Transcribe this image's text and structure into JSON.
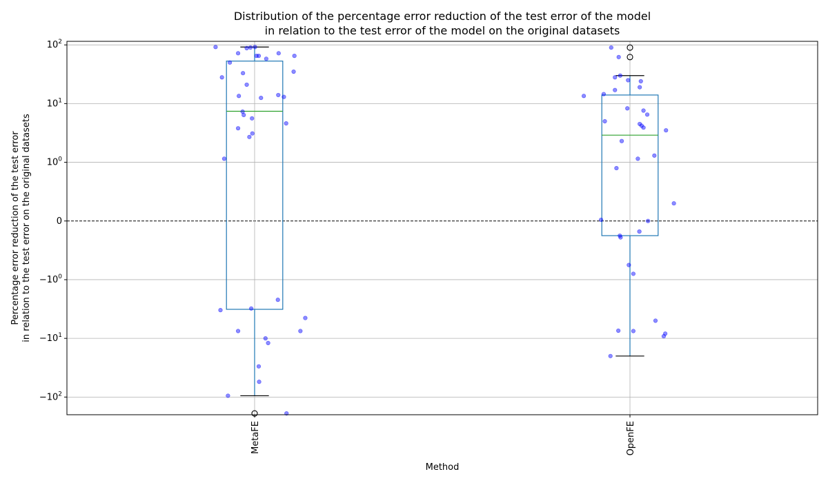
{
  "chart_data": {
    "type": "box",
    "title_line1": "Distribution of the percentage error reduction of the test error of the model",
    "title_line2": "in relation to the test error of the model on the original datasets",
    "xlabel": "Method",
    "ylabel_line1": "Percentage error reduction of the test error",
    "ylabel_line2": "in relation to the test error on the original datasets",
    "y_scale": "symlog",
    "y_linthresh": 1,
    "ylim": [
      -200,
      115
    ],
    "grid": true,
    "reference_line": 0,
    "colors": {
      "box": "#1f77b4",
      "median": "#2ca02c",
      "whisker_cap": "#000000",
      "points": "#0000ff",
      "grid": "#b0b0b0",
      "reference_line": "#000000"
    },
    "y_ticks": [
      {
        "value": 100,
        "base": "10",
        "exp": "2",
        "sign": ""
      },
      {
        "value": 10,
        "base": "10",
        "exp": "1",
        "sign": ""
      },
      {
        "value": 1,
        "base": "10",
        "exp": "0",
        "sign": ""
      },
      {
        "value": 0,
        "base": "0",
        "exp": "",
        "sign": ""
      },
      {
        "value": -1,
        "base": "10",
        "exp": "0",
        "sign": "−"
      },
      {
        "value": -10,
        "base": "10",
        "exp": "1",
        "sign": "−"
      },
      {
        "value": -100,
        "base": "10",
        "exp": "2",
        "sign": "−"
      }
    ],
    "categories": [
      "MetaFE",
      "OpenFE"
    ],
    "boxes": [
      {
        "name": "MetaFE",
        "whisker_low": -95,
        "q1": -3.2,
        "median": 7.4,
        "q3": 53,
        "whisker_high": 92,
        "fliers": [
          -190
        ],
        "points": [
          {
            "jitter": -0.104,
            "y": 92
          },
          {
            "jitter": -0.021,
            "y": 88
          },
          {
            "jitter": -0.011,
            "y": 90
          },
          {
            "jitter": 0.001,
            "y": 92
          },
          {
            "jitter": -0.044,
            "y": 72
          },
          {
            "jitter": 0.005,
            "y": 65
          },
          {
            "jitter": 0.011,
            "y": 65
          },
          {
            "jitter": 0.064,
            "y": 72
          },
          {
            "jitter": 0.106,
            "y": 65
          },
          {
            "jitter": 0.031,
            "y": 58
          },
          {
            "jitter": -0.066,
            "y": 50
          },
          {
            "jitter": -0.087,
            "y": 28
          },
          {
            "jitter": -0.031,
            "y": 33
          },
          {
            "jitter": 0.104,
            "y": 35
          },
          {
            "jitter": -0.021,
            "y": 21
          },
          {
            "jitter": -0.042,
            "y": 13.5
          },
          {
            "jitter": 0.017,
            "y": 12.5
          },
          {
            "jitter": 0.063,
            "y": 14
          },
          {
            "jitter": 0.078,
            "y": 13
          },
          {
            "jitter": -0.032,
            "y": 7.3
          },
          {
            "jitter": -0.029,
            "y": 6.4
          },
          {
            "jitter": -0.007,
            "y": 5.6
          },
          {
            "jitter": 0.084,
            "y": 4.6
          },
          {
            "jitter": -0.044,
            "y": 3.8
          },
          {
            "jitter": -0.006,
            "y": 3.1
          },
          {
            "jitter": -0.014,
            "y": 2.7
          },
          {
            "jitter": -0.081,
            "y": 1.15
          },
          {
            "jitter": 0.062,
            "y": -2.2
          },
          {
            "jitter": -0.009,
            "y": -3.1
          },
          {
            "jitter": -0.091,
            "y": -3.3
          },
          {
            "jitter": 0.135,
            "y": -4.5
          },
          {
            "jitter": -0.044,
            "y": -7.5
          },
          {
            "jitter": 0.122,
            "y": -7.5
          },
          {
            "jitter": 0.029,
            "y": -10
          },
          {
            "jitter": 0.036,
            "y": -12
          },
          {
            "jitter": 0.011,
            "y": -30
          },
          {
            "jitter": 0.012,
            "y": -55
          },
          {
            "jitter": -0.071,
            "y": -95
          },
          {
            "jitter": 0.085,
            "y": -190
          }
        ]
      },
      {
        "name": "OpenFE",
        "whisker_low": -20,
        "q1": -0.25,
        "median": 2.9,
        "q3": 14,
        "whisker_high": 30,
        "fliers": [
          90,
          62
        ],
        "points": [
          {
            "jitter": -0.05,
            "y": 90
          },
          {
            "jitter": -0.03,
            "y": 62
          },
          {
            "jitter": -0.04,
            "y": 28
          },
          {
            "jitter": -0.026,
            "y": 30
          },
          {
            "jitter": -0.005,
            "y": 25
          },
          {
            "jitter": 0.029,
            "y": 24
          },
          {
            "jitter": -0.04,
            "y": 17
          },
          {
            "jitter": 0.026,
            "y": 19
          },
          {
            "jitter": -0.07,
            "y": 14.5
          },
          {
            "jitter": -0.123,
            "y": 13.5
          },
          {
            "jitter": -0.007,
            "y": 8.3
          },
          {
            "jitter": 0.036,
            "y": 7.6
          },
          {
            "jitter": 0.046,
            "y": 6.5
          },
          {
            "jitter": -0.067,
            "y": 5
          },
          {
            "jitter": 0.026,
            "y": 4.5
          },
          {
            "jitter": 0.031,
            "y": 4.2
          },
          {
            "jitter": 0.036,
            "y": 3.9
          },
          {
            "jitter": 0.096,
            "y": 3.5
          },
          {
            "jitter": -0.022,
            "y": 2.3
          },
          {
            "jitter": 0.065,
            "y": 1.3
          },
          {
            "jitter": 0.021,
            "y": 1.15
          },
          {
            "jitter": -0.036,
            "y": 0.9
          },
          {
            "jitter": 0.117,
            "y": 0.3
          },
          {
            "jitter": -0.077,
            "y": 0.02
          },
          {
            "jitter": 0.048,
            "y": 0.0
          },
          {
            "jitter": 0.025,
            "y": -0.18
          },
          {
            "jitter": -0.027,
            "y": -0.25
          },
          {
            "jitter": -0.025,
            "y": -0.28
          },
          {
            "jitter": -0.003,
            "y": -0.75
          },
          {
            "jitter": 0.009,
            "y": -0.9
          },
          {
            "jitter": 0.068,
            "y": -5
          },
          {
            "jitter": -0.031,
            "y": -7.4
          },
          {
            "jitter": 0.009,
            "y": -7.5
          },
          {
            "jitter": 0.094,
            "y": -8.3
          },
          {
            "jitter": 0.09,
            "y": -9.2
          },
          {
            "jitter": -0.052,
            "y": -20
          }
        ]
      }
    ]
  }
}
